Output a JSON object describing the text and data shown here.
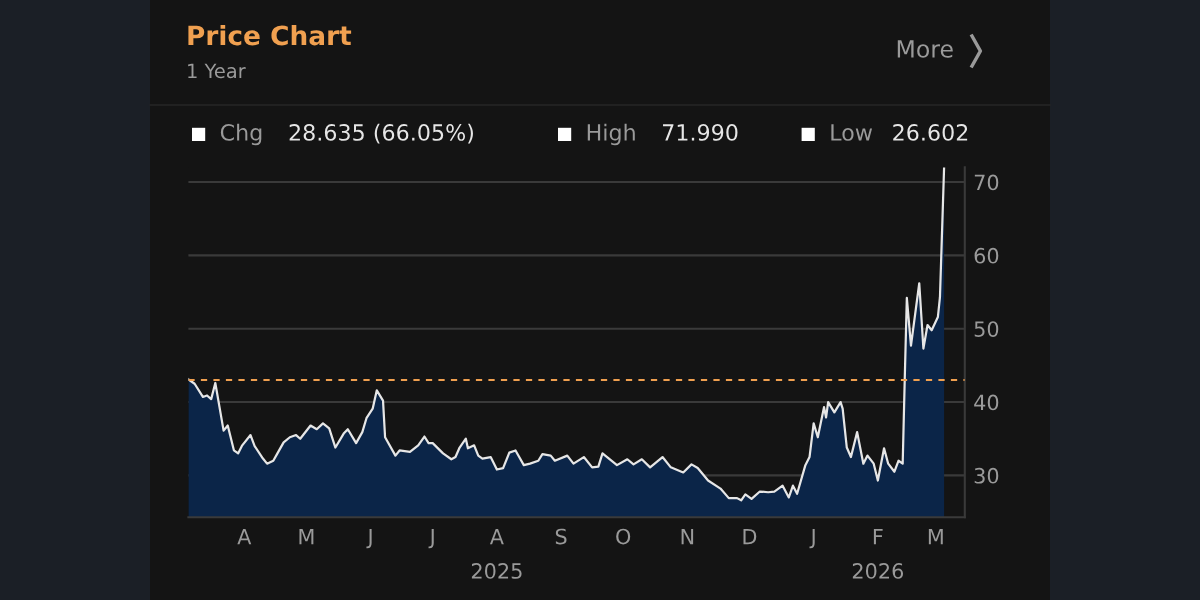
{
  "chart_data": {
    "type": "area",
    "title": "Price Chart",
    "subtitle": "1 Year",
    "annotations": [
      "Chg",
      "28.635 (66.05%)",
      "High",
      "71.990",
      "Low",
      "26.602",
      "More"
    ],
    "x": [
      "2025-03-19",
      "2025-03-22",
      "2025-03-26",
      "2025-03-28",
      "2025-03-30",
      "2025-04-01",
      "2025-04-05",
      "2025-04-07",
      "2025-04-10",
      "2025-04-12",
      "2025-04-14",
      "2025-04-18",
      "2025-04-20",
      "2025-04-24",
      "2025-04-26",
      "2025-04-29",
      "2025-05-01",
      "2025-05-04",
      "2025-05-07",
      "2025-05-10",
      "2025-05-12",
      "2025-05-17",
      "2025-05-20",
      "2025-05-23",
      "2025-05-26",
      "2025-05-29",
      "2025-06-02",
      "2025-06-04",
      "2025-06-08",
      "2025-06-11",
      "2025-06-13",
      "2025-06-16",
      "2025-06-18",
      "2025-06-21",
      "2025-06-22",
      "2025-06-27",
      "2025-06-29",
      "2025-07-04",
      "2025-07-08",
      "2025-07-11",
      "2025-07-13",
      "2025-07-15",
      "2025-07-20",
      "2025-07-24",
      "2025-07-26",
      "2025-07-28",
      "2025-07-31",
      "2025-08-01",
      "2025-08-04",
      "2025-08-06",
      "2025-08-08",
      "2025-08-12",
      "2025-08-15",
      "2025-08-18",
      "2025-08-21",
      "2025-08-24",
      "2025-08-28",
      "2025-08-31",
      "2025-09-04",
      "2025-09-06",
      "2025-09-10",
      "2025-09-12",
      "2025-09-18",
      "2025-09-21",
      "2025-09-26",
      "2025-09-30",
      "2025-10-03",
      "2025-10-05",
      "2025-10-12",
      "2025-10-17",
      "2025-10-20",
      "2025-10-24",
      "2025-10-28",
      "2025-11-03",
      "2025-11-07",
      "2025-11-13",
      "2025-11-17",
      "2025-11-20",
      "2025-11-25",
      "2025-12-01",
      "2025-12-05",
      "2025-12-09",
      "2025-12-11",
      "2025-12-13",
      "2025-12-16",
      "2025-12-20",
      "2025-12-24",
      "2025-12-27",
      "2025-12-31",
      "2026-01-03",
      "2026-01-05",
      "2026-01-07",
      "2026-01-11",
      "2026-01-13",
      "2026-01-15",
      "2026-01-17",
      "2026-01-20",
      "2026-01-21",
      "2026-01-22",
      "2026-01-25",
      "2026-01-28",
      "2026-01-29",
      "2026-01-31",
      "2026-02-02",
      "2026-02-05",
      "2026-02-08",
      "2026-02-10",
      "2026-02-13",
      "2026-02-15",
      "2026-02-18",
      "2026-02-20",
      "2026-02-23",
      "2026-02-25",
      "2026-02-27",
      "2026-02-28",
      "2026-03-01",
      "2026-03-03",
      "2026-03-07",
      "2026-03-09",
      "2026-03-11",
      "2026-03-13",
      "2026-03-16",
      "2026-03-17",
      "2026-03-19"
    ],
    "series": [
      {
        "color": "#e6e6e6",
        "values": [
          43.1,
          42.5,
          40.7,
          40.9,
          40.4,
          42.6,
          36.1,
          36.8,
          33.4,
          33.0,
          34.1,
          35.5,
          34.0,
          32.3,
          31.6,
          32.0,
          33.0,
          34.5,
          35.2,
          35.5,
          35.0,
          36.8,
          36.3,
          37.1,
          36.4,
          33.8,
          35.7,
          36.3,
          34.4,
          35.9,
          37.8,
          39.1,
          41.6,
          40.2,
          35.2,
          32.7,
          33.4,
          33.2,
          34.1,
          35.3,
          34.4,
          34.4,
          33.0,
          32.2,
          32.5,
          33.8,
          35.0,
          33.7,
          34.1,
          32.7,
          32.3,
          32.5,
          30.8,
          31.0,
          33.1,
          33.4,
          31.4,
          31.6,
          32.0,
          32.9,
          32.7,
          32.0,
          32.7,
          31.6,
          32.5,
          31.1,
          31.2,
          33.0,
          31.4,
          32.2,
          31.5,
          32.2,
          31.1,
          32.5,
          31.1,
          30.4,
          31.5,
          31.0,
          29.3,
          28.2,
          26.9,
          26.9,
          26.6,
          27.4,
          26.8,
          27.8,
          27.7,
          27.8,
          28.6,
          27.0,
          28.6,
          27.5,
          31.4,
          32.5,
          37.1,
          35.2,
          39.3,
          37.9,
          40.0,
          38.6,
          40.0,
          39.1,
          33.8,
          32.5,
          35.9,
          31.6,
          32.7,
          31.6,
          29.3,
          33.7,
          31.6,
          30.5,
          32.0,
          31.6,
          43.2,
          54.2,
          47.7,
          56.2,
          47.3,
          50.5,
          49.8,
          51.6,
          54.3,
          72.0
        ]
      }
    ],
    "xlim": [
      "2025-03-19",
      "2026-03-29"
    ],
    "xticks": [
      {
        "value": "2025-04-15",
        "label": "A"
      },
      {
        "value": "2025-05-15",
        "label": "M"
      },
      {
        "value": "2025-06-15",
        "label": "J"
      },
      {
        "value": "2025-07-15",
        "label": "J"
      },
      {
        "value": "2025-08-15",
        "label": "A\n2025"
      },
      {
        "value": "2025-09-15",
        "label": "S"
      },
      {
        "value": "2025-10-15",
        "label": "O"
      },
      {
        "value": "2025-11-15",
        "label": "N"
      },
      {
        "value": "2025-12-15",
        "label": "D"
      },
      {
        "value": "2026-01-15",
        "label": "J"
      },
      {
        "value": "2026-02-15",
        "label": "F\n2026"
      },
      {
        "value": "2026-03-15",
        "label": "M"
      }
    ],
    "ylim": [
      24.3,
      72
    ],
    "yticks": [
      30,
      40,
      50,
      60,
      70
    ],
    "grid": "y",
    "ref_lines": [
      {
        "axis": "y",
        "value": 43,
        "color": "#f0a050",
        "line_style": "dashed"
      }
    ]
  }
}
